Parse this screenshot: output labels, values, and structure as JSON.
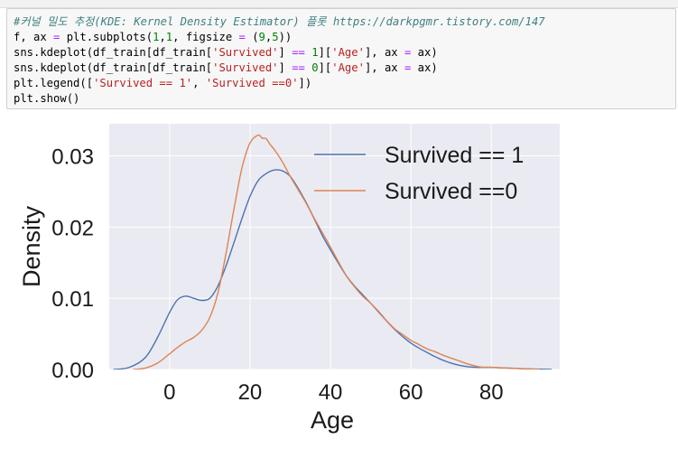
{
  "code_cell": {
    "lines": [
      [
        {
          "t": "#커널 밀도 추정(KDE: Kernel Density Estimator) 플롯 https://darkpgmr.tistory.com/147",
          "c": "comment"
        }
      ],
      [
        {
          "t": "f, ax "
        },
        {
          "t": "=",
          "c": "op"
        },
        {
          "t": " plt.subplots("
        },
        {
          "t": "1",
          "c": "num"
        },
        {
          "t": ","
        },
        {
          "t": "1",
          "c": "num"
        },
        {
          "t": ", figsize "
        },
        {
          "t": "=",
          "c": "op"
        },
        {
          "t": " ("
        },
        {
          "t": "9",
          "c": "num"
        },
        {
          "t": ","
        },
        {
          "t": "5",
          "c": "num"
        },
        {
          "t": "))"
        }
      ],
      [
        {
          "t": "sns.kdeplot(df_train[df_train["
        },
        {
          "t": "'Survived'",
          "c": "str"
        },
        {
          "t": "] "
        },
        {
          "t": "==",
          "c": "op"
        },
        {
          "t": " "
        },
        {
          "t": "1",
          "c": "num"
        },
        {
          "t": "]["
        },
        {
          "t": "'Age'",
          "c": "str"
        },
        {
          "t": "], ax "
        },
        {
          "t": "=",
          "c": "op"
        },
        {
          "t": " ax)"
        }
      ],
      [
        {
          "t": "sns.kdeplot(df_train[df_train["
        },
        {
          "t": "'Survived'",
          "c": "str"
        },
        {
          "t": "] "
        },
        {
          "t": "==",
          "c": "op"
        },
        {
          "t": " "
        },
        {
          "t": "0",
          "c": "num"
        },
        {
          "t": "]["
        },
        {
          "t": "'Age'",
          "c": "str"
        },
        {
          "t": "], ax "
        },
        {
          "t": "=",
          "c": "op"
        },
        {
          "t": " ax)"
        }
      ],
      [
        {
          "t": "plt.legend(["
        },
        {
          "t": "'Survived == 1'",
          "c": "str"
        },
        {
          "t": ", "
        },
        {
          "t": "'Survived ==0'",
          "c": "str"
        },
        {
          "t": "])"
        }
      ],
      [
        {
          "t": "plt.show()"
        }
      ]
    ]
  },
  "chart_data": {
    "type": "line",
    "title": "",
    "xlabel": "Age",
    "ylabel": "Density",
    "xlim": [
      -15,
      97
    ],
    "ylim": [
      0,
      0.0345
    ],
    "xticks": [
      0,
      20,
      40,
      60,
      80
    ],
    "xtick_labels": [
      "0",
      "20",
      "40",
      "60",
      "80"
    ],
    "yticks": [
      0,
      0.01,
      0.02,
      0.03
    ],
    "ytick_labels": [
      "0.00",
      "0.01",
      "0.02",
      "0.03"
    ],
    "grid": true,
    "legend_position": "top-right",
    "style": "seaborn-darkgrid",
    "series": [
      {
        "name": "Survived == 1",
        "color": "#4c72b0",
        "x": [
          -14,
          -10,
          -6,
          -3,
          0,
          2,
          4,
          6,
          8,
          10,
          12,
          14,
          16,
          18,
          20,
          22,
          24,
          26,
          28,
          30,
          32,
          34,
          36,
          38,
          40,
          42,
          44,
          46,
          48,
          50,
          52,
          54,
          56,
          58,
          60,
          62,
          64,
          66,
          68,
          70,
          72,
          74,
          76,
          78,
          80,
          84,
          88,
          95
        ],
        "y": [
          0.0,
          0.0003,
          0.0017,
          0.0045,
          0.008,
          0.0098,
          0.0103,
          0.01,
          0.0097,
          0.01,
          0.0117,
          0.0145,
          0.0178,
          0.0212,
          0.0243,
          0.0265,
          0.0275,
          0.028,
          0.0279,
          0.0271,
          0.0254,
          0.0234,
          0.0211,
          0.0188,
          0.0168,
          0.0149,
          0.0131,
          0.0117,
          0.0105,
          0.0093,
          0.0081,
          0.0068,
          0.0056,
          0.0046,
          0.0037,
          0.003,
          0.0024,
          0.0018,
          0.0013,
          0.0009,
          0.0006,
          0.0004,
          0.0003,
          0.0003,
          0.0003,
          0.0002,
          0.0001,
          0.0
        ]
      },
      {
        "name": "Survived ==0",
        "color": "#dd8452",
        "x": [
          -9,
          -6,
          -3,
          0,
          2,
          4,
          6,
          8,
          10,
          12,
          14,
          16,
          18,
          20,
          22,
          23,
          24,
          25,
          26,
          28,
          30,
          32,
          34,
          36,
          38,
          40,
          42,
          44,
          46,
          48,
          50,
          52,
          54,
          56,
          58,
          60,
          62,
          64,
          66,
          68,
          70,
          72,
          74,
          76,
          78,
          80,
          84,
          88,
          92
        ],
        "y": [
          0.0,
          0.0002,
          0.0009,
          0.0022,
          0.0031,
          0.0039,
          0.0045,
          0.0055,
          0.0073,
          0.0107,
          0.0162,
          0.0225,
          0.0283,
          0.0318,
          0.0329,
          0.0325,
          0.0324,
          0.0316,
          0.0309,
          0.0292,
          0.0271,
          0.0252,
          0.0233,
          0.0212,
          0.0192,
          0.0172,
          0.0151,
          0.0131,
          0.0116,
          0.0103,
          0.0093,
          0.008,
          0.0068,
          0.0057,
          0.0049,
          0.0041,
          0.0035,
          0.0029,
          0.0025,
          0.002,
          0.0016,
          0.0012,
          0.0008,
          0.0005,
          0.0003,
          0.0003,
          0.0002,
          0.0001,
          0.0
        ]
      }
    ]
  }
}
